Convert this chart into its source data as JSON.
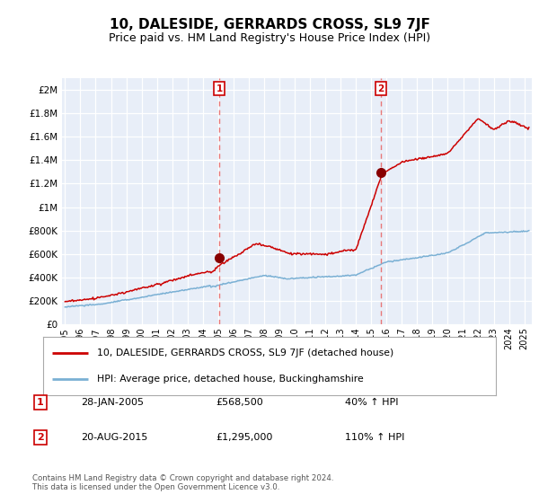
{
  "title": "10, DALESIDE, GERRARDS CROSS, SL9 7JF",
  "subtitle": "Price paid vs. HM Land Registry's House Price Index (HPI)",
  "red_line_label": "10, DALESIDE, GERRARDS CROSS, SL9 7JF (detached house)",
  "blue_line_label": "HPI: Average price, detached house, Buckinghamshire",
  "sale1_date": "28-JAN-2005",
  "sale1_price": "£568,500",
  "sale1_hpi": "40% ↑ HPI",
  "sale2_date": "20-AUG-2015",
  "sale2_price": "£1,295,000",
  "sale2_hpi": "110% ↑ HPI",
  "footnote": "Contains HM Land Registry data © Crown copyright and database right 2024.\nThis data is licensed under the Open Government Licence v3.0.",
  "vline1_x": 2005.07,
  "vline2_x": 2015.64,
  "dot1_x": 2005.07,
  "dot1_y": 568500,
  "dot2_x": 2015.64,
  "dot2_y": 1295000,
  "xlim_left": 1994.8,
  "xlim_right": 2025.5,
  "ylim_bottom": 0,
  "ylim_top": 2100000,
  "yticks": [
    0,
    200000,
    400000,
    600000,
    800000,
    1000000,
    1200000,
    1400000,
    1600000,
    1800000,
    2000000
  ],
  "ytick_labels": [
    "£0",
    "£200K",
    "£400K",
    "£600K",
    "£800K",
    "£1M",
    "£1.2M",
    "£1.4M",
    "£1.6M",
    "£1.8M",
    "£2M"
  ],
  "xticks": [
    1995,
    1996,
    1997,
    1998,
    1999,
    2000,
    2001,
    2002,
    2003,
    2004,
    2005,
    2006,
    2007,
    2008,
    2009,
    2010,
    2011,
    2012,
    2013,
    2014,
    2015,
    2016,
    2017,
    2018,
    2019,
    2020,
    2021,
    2022,
    2023,
    2024,
    2025
  ],
  "red_color": "#cc0000",
  "blue_color": "#7ab0d4",
  "vline_color": "#e87878",
  "dot_color": "#880000",
  "plot_bg_color": "#e8eef8",
  "grid_color": "#ffffff",
  "title_fontsize": 11,
  "subtitle_fontsize": 9
}
